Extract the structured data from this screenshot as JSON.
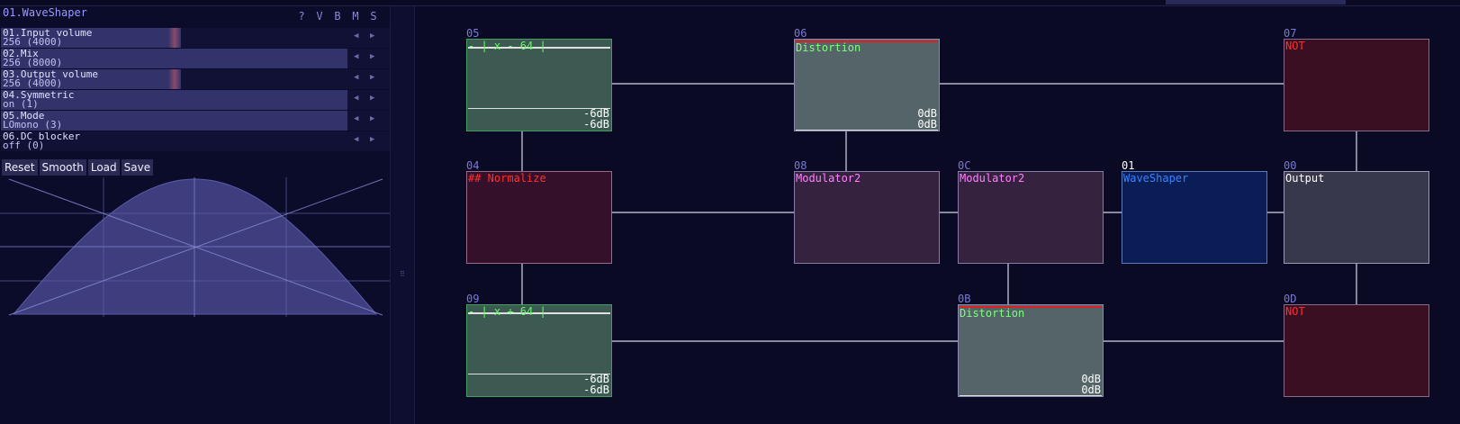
{
  "module": {
    "title": "01.WaveShaper",
    "flags": [
      "?",
      "V",
      "B",
      "M",
      "S"
    ],
    "params": [
      {
        "name": "01.Input volume",
        "value": "256 (4000)",
        "level": 0.5
      },
      {
        "name": "02.Mix",
        "value": "256 (8000)",
        "level": 1.0
      },
      {
        "name": "03.Output volume",
        "value": "256 (4000)",
        "level": 0.5
      },
      {
        "name": "04.Symmetric",
        "value": "on (1)",
        "level": 1.0
      },
      {
        "name": "05.Mode",
        "value": "LOmono (3)",
        "level": 1.0
      },
      {
        "name": "06.DC blocker",
        "value": "off (0)",
        "level": 0.0
      }
    ],
    "buttons": [
      "Reset",
      "Smooth",
      "Load",
      "Save"
    ]
  },
  "nodes": {
    "n05": {
      "id": "05",
      "title": "- | x - 64 |",
      "levels": [
        "-6dB",
        "-6dB"
      ]
    },
    "n06": {
      "id": "06",
      "title": "Distortion",
      "levels": [
        "0dB",
        "0dB"
      ]
    },
    "n07": {
      "id": "07",
      "title": "NOT"
    },
    "n04": {
      "id": "04",
      "title": "## Normalize"
    },
    "n08": {
      "id": "08",
      "title": "Modulator2"
    },
    "n0c": {
      "id": "0C",
      "title": "Modulator2"
    },
    "n01": {
      "id": "01",
      "title": "WaveShaper"
    },
    "n00": {
      "id": "00",
      "title": "Output"
    },
    "n09": {
      "id": "09",
      "title": "- | x + 64 |",
      "levels": [
        "-6dB",
        "-6dB"
      ]
    },
    "n0b": {
      "id": "0B",
      "title": "Distortion",
      "levels": [
        "0dB",
        "0dB"
      ]
    },
    "n0d": {
      "id": "0D",
      "title": "NOT"
    }
  }
}
